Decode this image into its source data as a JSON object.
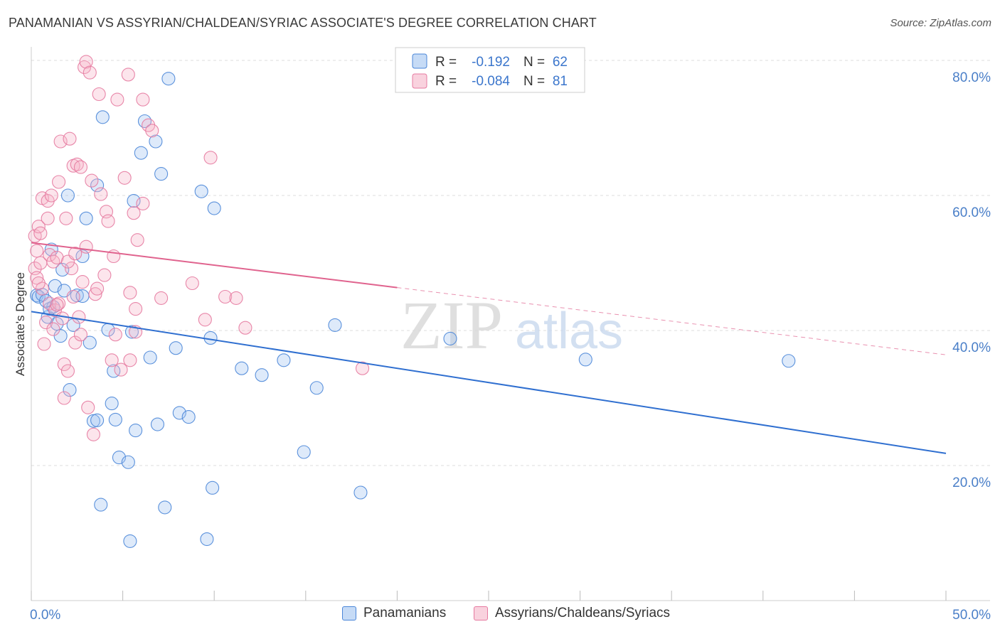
{
  "title": "PANAMANIAN VS ASSYRIAN/CHALDEAN/SYRIAC ASSOCIATE'S DEGREE CORRELATION CHART",
  "source": "Source: ZipAtlas.com",
  "watermark": {
    "zip": "ZIP",
    "atlas": "atlas"
  },
  "colors": {
    "blue": "#4a86d8",
    "blue_fill": "rgba(160,195,240,0.35)",
    "blue_line": "#2f6fd0",
    "pink": "#e67aa0",
    "pink_fill": "rgba(245,180,200,0.35)",
    "pink_line": "#e0638e",
    "tick_label": "#4a7fc8",
    "grid": "#dddddd"
  },
  "legend_top": {
    "rows": [
      {
        "r_label": "R =",
        "r_value": "-0.192",
        "n_label": "N =",
        "n_value": "62"
      },
      {
        "r_label": "R =",
        "r_value": "-0.084",
        "n_label": "N =",
        "n_value": "81"
      }
    ]
  },
  "chart_data": {
    "type": "scatter",
    "title": "PANAMANIAN VS ASSYRIAN/CHALDEAN/SYRIAC ASSOCIATE'S DEGREE CORRELATION CHART",
    "xlabel": "",
    "ylabel": "Associate's Degree",
    "xlim": [
      0,
      50
    ],
    "ylim": [
      0,
      82
    ],
    "x_tick_labels": [
      {
        "value": 0,
        "label": "0.0%"
      },
      {
        "value": 50,
        "label": "50.0%"
      }
    ],
    "y_tick_labels": [
      {
        "value": 20,
        "label": "20.0%"
      },
      {
        "value": 40,
        "label": "40.0%"
      },
      {
        "value": 60,
        "label": "60.0%"
      },
      {
        "value": 80,
        "label": "80.0%"
      }
    ],
    "grid": true,
    "legend_position": "top-center",
    "series": [
      {
        "name": "Panamanians",
        "color": "#4a86d8",
        "r": -0.192,
        "n": 62,
        "trend": {
          "x": [
            0,
            50
          ],
          "y": [
            42.8,
            21.8
          ],
          "dashed_from": null
        },
        "points": [
          [
            0.3,
            45.2
          ],
          [
            0.4,
            45.0
          ],
          [
            0.6,
            45.3
          ],
          [
            0.9,
            42.0
          ],
          [
            1.0,
            43.2
          ],
          [
            1.1,
            52.0
          ],
          [
            1.3,
            46.6
          ],
          [
            1.4,
            41.0
          ],
          [
            1.6,
            39.2
          ],
          [
            1.7,
            49.0
          ],
          [
            1.8,
            45.9
          ],
          [
            2.0,
            60.0
          ],
          [
            2.1,
            31.2
          ],
          [
            2.3,
            40.8
          ],
          [
            2.5,
            45.2
          ],
          [
            2.8,
            51.0
          ],
          [
            3.0,
            56.6
          ],
          [
            3.2,
            38.2
          ],
          [
            3.4,
            26.6
          ],
          [
            3.6,
            61.5
          ],
          [
            3.6,
            26.7
          ],
          [
            3.8,
            14.2
          ],
          [
            3.9,
            71.6
          ],
          [
            4.2,
            40.1
          ],
          [
            4.4,
            29.2
          ],
          [
            4.5,
            34.0
          ],
          [
            4.6,
            26.8
          ],
          [
            4.8,
            21.2
          ],
          [
            5.3,
            20.5
          ],
          [
            5.4,
            8.8
          ],
          [
            5.5,
            39.8
          ],
          [
            5.6,
            59.2
          ],
          [
            5.7,
            25.2
          ],
          [
            6.0,
            66.3
          ],
          [
            6.2,
            71.0
          ],
          [
            6.5,
            36.0
          ],
          [
            6.8,
            68.0
          ],
          [
            6.9,
            26.1
          ],
          [
            7.1,
            63.2
          ],
          [
            7.3,
            13.8
          ],
          [
            7.5,
            77.3
          ],
          [
            7.9,
            37.4
          ],
          [
            8.1,
            27.8
          ],
          [
            8.6,
            27.2
          ],
          [
            9.3,
            60.6
          ],
          [
            9.6,
            9.1
          ],
          [
            9.8,
            38.9
          ],
          [
            9.9,
            16.7
          ],
          [
            10.0,
            58.1
          ],
          [
            11.5,
            34.4
          ],
          [
            12.6,
            33.4
          ],
          [
            13.8,
            35.6
          ],
          [
            14.9,
            22.0
          ],
          [
            15.6,
            31.5
          ],
          [
            16.6,
            40.8
          ],
          [
            18.0,
            16.0
          ],
          [
            22.9,
            38.8
          ],
          [
            30.3,
            35.7
          ],
          [
            41.4,
            35.5
          ],
          [
            1.2,
            43.5
          ],
          [
            2.8,
            45.1
          ],
          [
            0.8,
            44.4
          ]
        ]
      },
      {
        "name": "Assyrians/Chaldeans/Syriacs",
        "color": "#e67aa0",
        "r": -0.084,
        "n": 81,
        "trend": {
          "x": [
            0,
            50
          ],
          "y": [
            53.0,
            36.4
          ],
          "dashed_from": 20.0
        },
        "points": [
          [
            0.2,
            54.0
          ],
          [
            0.2,
            49.2
          ],
          [
            0.3,
            51.8
          ],
          [
            0.3,
            47.8
          ],
          [
            0.4,
            55.4
          ],
          [
            0.5,
            54.4
          ],
          [
            0.5,
            50.0
          ],
          [
            0.6,
            59.6
          ],
          [
            0.6,
            46.2
          ],
          [
            0.7,
            38.0
          ],
          [
            0.8,
            41.2
          ],
          [
            0.9,
            59.2
          ],
          [
            0.9,
            56.6
          ],
          [
            1.0,
            51.2
          ],
          [
            1.0,
            44.0
          ],
          [
            1.1,
            60.0
          ],
          [
            1.2,
            50.2
          ],
          [
            1.2,
            40.2
          ],
          [
            1.3,
            43.0
          ],
          [
            1.4,
            50.8
          ],
          [
            1.5,
            62.0
          ],
          [
            1.5,
            44.0
          ],
          [
            1.6,
            68.0
          ],
          [
            1.7,
            41.8
          ],
          [
            1.8,
            35.0
          ],
          [
            1.8,
            30.0
          ],
          [
            1.9,
            56.6
          ],
          [
            2.0,
            34.0
          ],
          [
            2.1,
            68.4
          ],
          [
            2.2,
            49.2
          ],
          [
            2.3,
            64.4
          ],
          [
            2.3,
            45.0
          ],
          [
            2.4,
            38.2
          ],
          [
            2.5,
            64.6
          ],
          [
            2.6,
            42.0
          ],
          [
            2.7,
            64.2
          ],
          [
            2.7,
            39.4
          ],
          [
            2.8,
            47.2
          ],
          [
            2.9,
            79.0
          ],
          [
            3.0,
            79.8
          ],
          [
            3.0,
            52.4
          ],
          [
            3.1,
            28.6
          ],
          [
            3.2,
            78.2
          ],
          [
            3.3,
            62.2
          ],
          [
            3.4,
            24.6
          ],
          [
            3.5,
            45.4
          ],
          [
            3.6,
            46.2
          ],
          [
            3.7,
            75.0
          ],
          [
            3.8,
            60.2
          ],
          [
            4.0,
            48.2
          ],
          [
            4.1,
            57.6
          ],
          [
            4.2,
            56.2
          ],
          [
            4.4,
            35.6
          ],
          [
            4.5,
            51.0
          ],
          [
            4.6,
            39.4
          ],
          [
            4.7,
            74.2
          ],
          [
            4.9,
            34.2
          ],
          [
            5.1,
            62.6
          ],
          [
            5.3,
            77.9
          ],
          [
            5.4,
            45.6
          ],
          [
            5.4,
            35.6
          ],
          [
            5.6,
            57.4
          ],
          [
            5.7,
            43.2
          ],
          [
            5.7,
            39.8
          ],
          [
            5.8,
            53.4
          ],
          [
            6.1,
            74.2
          ],
          [
            6.1,
            58.8
          ],
          [
            6.4,
            70.4
          ],
          [
            6.6,
            69.6
          ],
          [
            7.1,
            44.8
          ],
          [
            8.8,
            47.0
          ],
          [
            9.5,
            41.6
          ],
          [
            9.8,
            65.6
          ],
          [
            10.6,
            45.0
          ],
          [
            11.2,
            44.8
          ],
          [
            11.7,
            40.4
          ],
          [
            18.1,
            34.4
          ],
          [
            2.0,
            50.2
          ],
          [
            1.4,
            43.8
          ],
          [
            2.4,
            51.4
          ],
          [
            0.4,
            47.0
          ]
        ]
      }
    ]
  }
}
